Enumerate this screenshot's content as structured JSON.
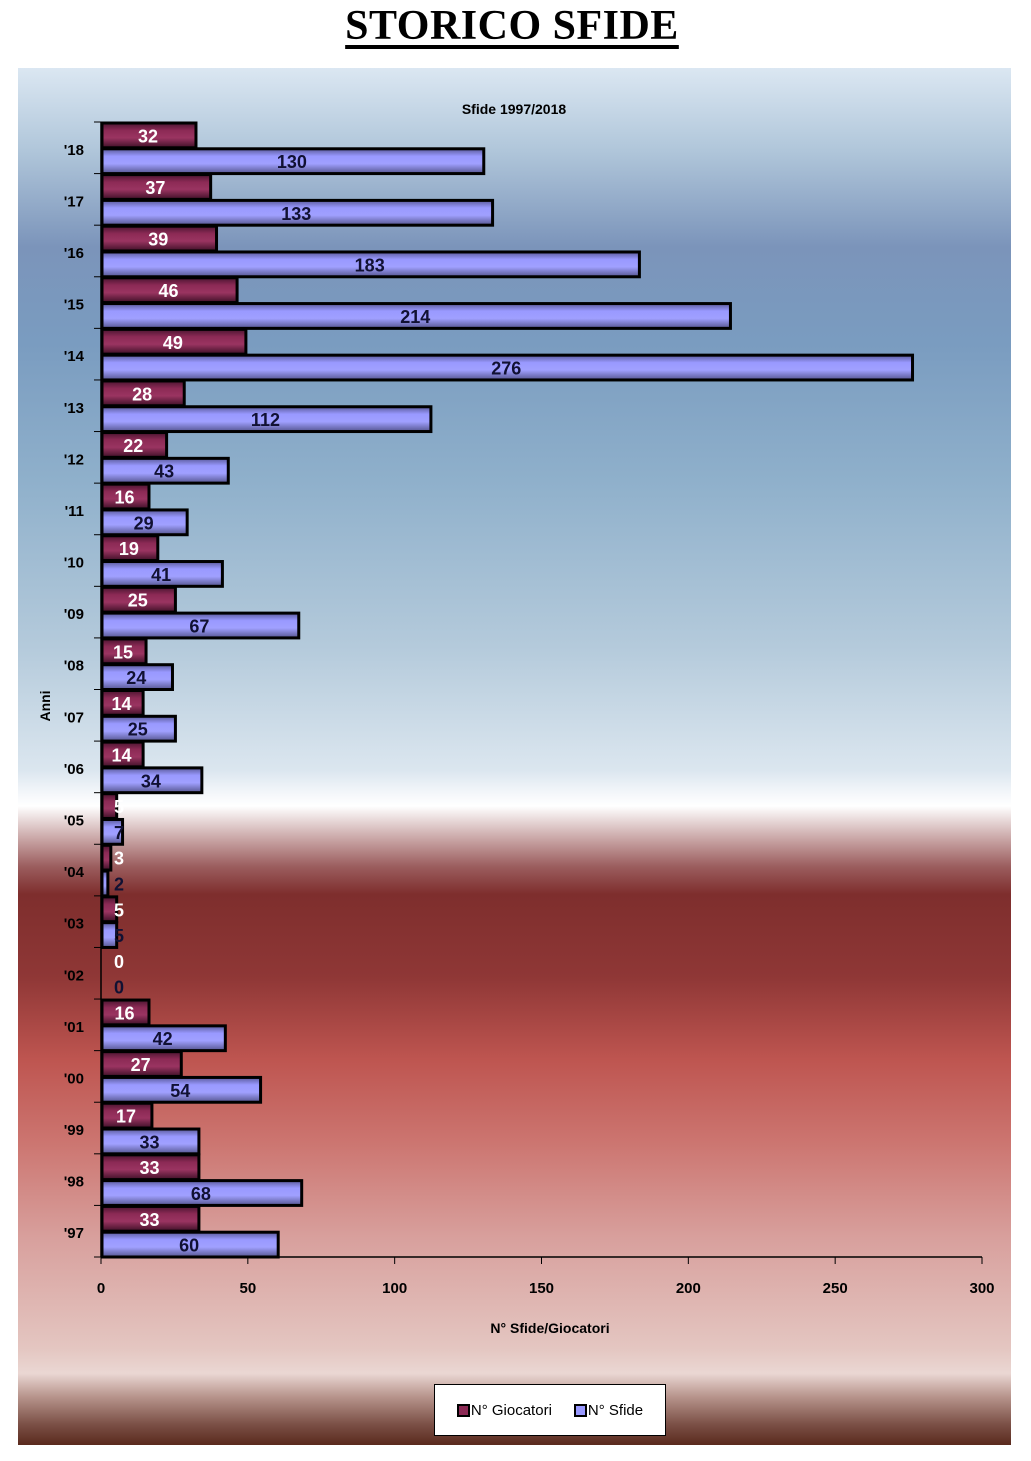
{
  "page": {
    "title": "STORICO SFIDE"
  },
  "colors": {
    "giocatori": "#8c2a55",
    "sfide": "#9999ff",
    "bar_border": "#000000",
    "label_giocatori": "#ffffff",
    "label_sfide": "#111133"
  },
  "chart_data": {
    "type": "bar",
    "orientation": "horizontal",
    "title": "Sfide 1997/2018",
    "xlabel": "N° Sfide/Giocatori",
    "ylabel": "Anni",
    "xlim": [
      0,
      300
    ],
    "xticks": [
      "0",
      "50",
      "100",
      "150",
      "200",
      "250",
      "300"
    ],
    "xtick_values": [
      0,
      50,
      100,
      150,
      200,
      250,
      300
    ],
    "grid": false,
    "legend_position": "bottom",
    "categories": [
      "'18",
      "'17",
      "'16",
      "'15",
      "'14",
      "'13",
      "'12",
      "'11",
      "'10",
      "'09",
      "'08",
      "'07",
      "'06",
      "'05",
      "'04",
      "'03",
      "'02",
      "'01",
      "'00",
      "'99",
      "'98",
      "'97"
    ],
    "series": [
      {
        "name": "N° Giocatori",
        "values": [
          32,
          37,
          39,
          46,
          49,
          28,
          22,
          16,
          19,
          25,
          15,
          14,
          14,
          5,
          3,
          5,
          0,
          16,
          27,
          17,
          33,
          33
        ]
      },
      {
        "name": "N° Sfide",
        "values": [
          130,
          133,
          183,
          214,
          276,
          112,
          43,
          29,
          41,
          67,
          24,
          25,
          34,
          7,
          2,
          5,
          0,
          42,
          54,
          33,
          68,
          60
        ]
      }
    ]
  }
}
